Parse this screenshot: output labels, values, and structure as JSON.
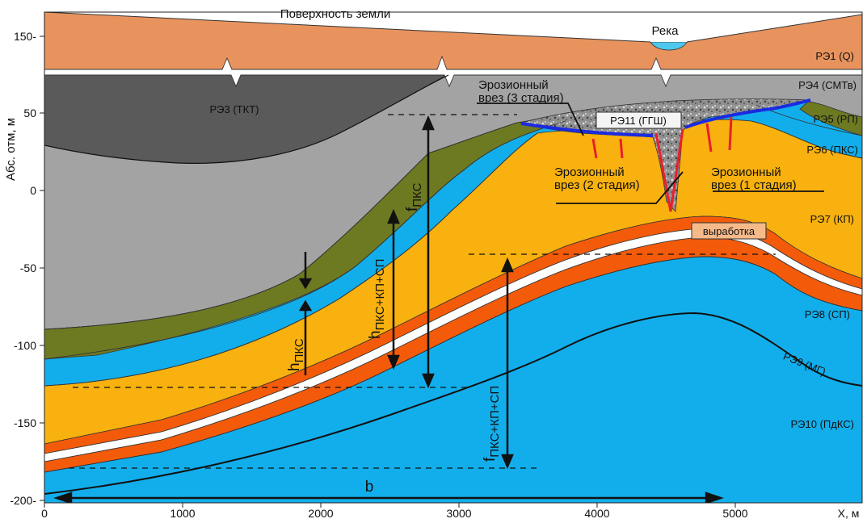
{
  "header": {
    "surface_label": "Поверхность земли",
    "river_label": "Река"
  },
  "axes": {
    "ylabel": "Абс. отм, м",
    "xlabel": "X, м",
    "yticks": [
      "150-",
      "50",
      "0",
      "-50",
      "-100",
      "-150",
      "-200-"
    ],
    "xticks": [
      "0",
      "1000",
      "2000",
      "3000",
      "4000",
      "5000"
    ]
  },
  "units": [
    "РЭ1 (Q)",
    "РЭ3 (ТКТ)",
    "РЭ4 (СМТв)",
    "РЭ5 (РП)",
    "РЭ6 (ПКС)",
    "РЭ7 (КП)",
    "РЭ8 (СП)",
    "РЭ9 (МГ)",
    "РЭ10 (ПдКС)",
    "РЭ11 (ГГШ)"
  ],
  "annotations": {
    "erosion_3_line1": "Эрозионный",
    "erosion_3_line2": "врез (3 стадия)",
    "erosion_2_line1": "Эрозионный",
    "erosion_2_line2": "врез (2 стадия)",
    "erosion_1_line1": "Эрозионный",
    "erosion_1_line2": "врез (1 стадия)",
    "workings": "выработка"
  },
  "dimensions": {
    "h_pks_main": "h",
    "h_pks_sub": "ПКС",
    "h_pks_kp_sp_main": "h",
    "h_pks_kp_sp_sub": "ПКС+КП+СП",
    "f_pks_main": "f",
    "f_pks_sub": "ПКС",
    "f_pks_kp_sp_main": "f",
    "f_pks_kp_sp_sub": "ПКС+КП+СП",
    "b": "b"
  },
  "colors": {
    "re1": "#E8935E",
    "re3": "#5A5A5A",
    "re4": "#A3A3A3",
    "re5": "#6E7A22",
    "re6": "#12AEEB",
    "re7": "#F8B10E",
    "re8_orange": "#F35B0B",
    "re10": "#12AEEB",
    "re11": "#9A9A9A",
    "river": "#4FC8EE",
    "incision_red": "#E8202A",
    "base_blue": "#1A2BE0"
  }
}
